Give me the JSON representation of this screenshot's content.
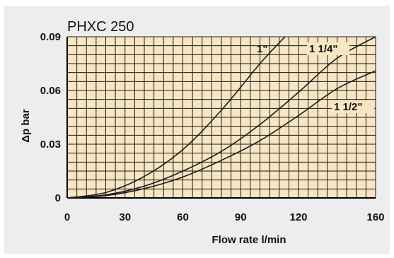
{
  "chart_data": {
    "type": "line",
    "title": "PHXC 250",
    "xlabel": "Flow rate l/min",
    "ylabel": "Δp bar",
    "xlim": [
      0,
      160
    ],
    "ylim": [
      0,
      0.09
    ],
    "x_ticks": [
      "0",
      "30",
      "60",
      "90",
      "120",
      "160"
    ],
    "y_ticks": [
      "0",
      "0.03",
      "0.06",
      "0.09"
    ],
    "grid": true,
    "series": [
      {
        "name": "1\"",
        "x": [
          0,
          20,
          40,
          60,
          80,
          100,
          113
        ],
        "y": [
          0,
          0.003,
          0.012,
          0.027,
          0.049,
          0.075,
          0.09
        ]
      },
      {
        "name": "1 1/4\"",
        "x": [
          0,
          20,
          40,
          60,
          80,
          100,
          120,
          140,
          160
        ],
        "y": [
          0,
          0.0017,
          0.0066,
          0.015,
          0.026,
          0.041,
          0.059,
          0.078,
          0.09
        ]
      },
      {
        "name": "1 1/2\"",
        "x": [
          0,
          20,
          40,
          60,
          80,
          100,
          120,
          140,
          160
        ],
        "y": [
          0,
          0.0013,
          0.0052,
          0.0117,
          0.021,
          0.032,
          0.046,
          0.061,
          0.071
        ]
      }
    ]
  },
  "colors": {
    "panel_background": "#ededed",
    "plot_background": "#f7e6c2",
    "grid_line": "#1a1a1a",
    "curve": "#1a1a1a"
  }
}
